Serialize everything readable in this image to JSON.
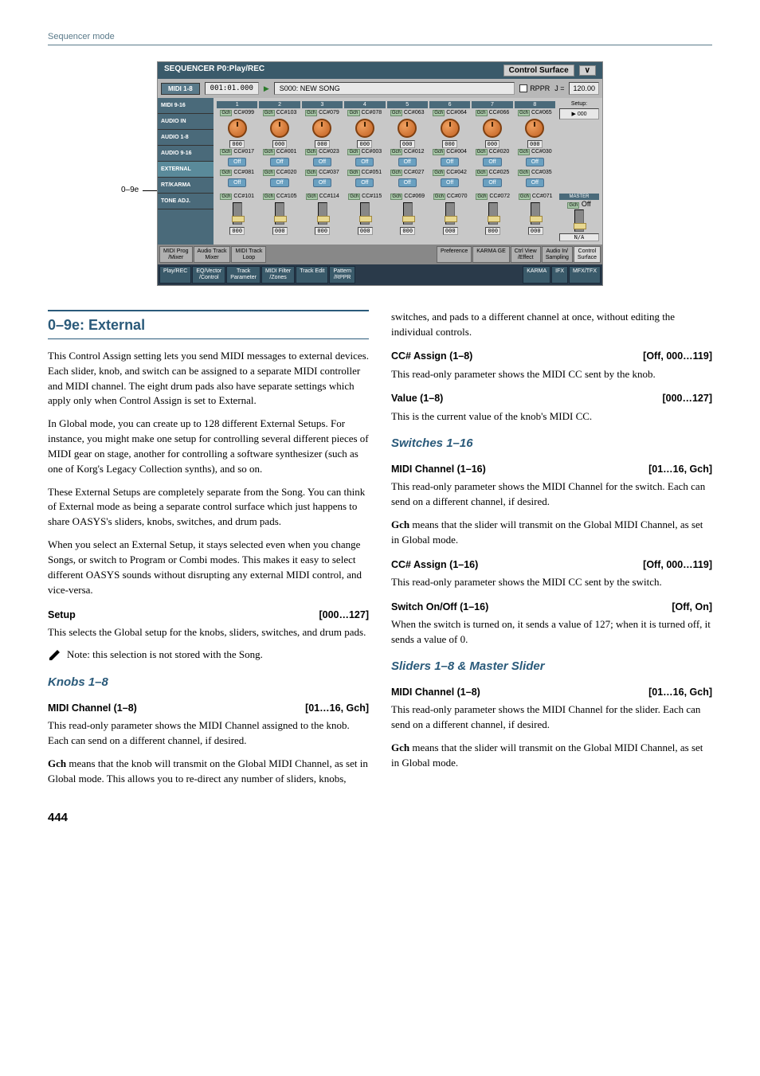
{
  "header": {
    "mode": "Sequencer mode"
  },
  "callout": "0–9e",
  "screenshot": {
    "title": "SEQUENCER P0:Play/REC",
    "surface_label": "Control Surface",
    "counter": "001:01.000",
    "play_icon": "▶",
    "song_name": "S000: NEW SONG",
    "rppr_label": "RPPR",
    "tempo_label": "J =",
    "tempo_value": "120.00",
    "sidebar": [
      "MIDI 1-8",
      "MIDI 9-16",
      "AUDIO IN",
      "AUDIO 1-8",
      "AUDIO 9-16",
      "EXTERNAL",
      "RT/KARMA",
      "TONE ADJ."
    ],
    "col_headers": [
      "1",
      "2",
      "3",
      "4",
      "5",
      "6",
      "7",
      "8"
    ],
    "knob_row": {
      "cc": [
        "CC#099",
        "CC#103",
        "CC#079",
        "CC#078",
        "CC#063",
        "CC#064",
        "CC#066",
        "CC#065"
      ],
      "vals": [
        "000",
        "000",
        "000",
        "000",
        "000",
        "000",
        "000",
        "000"
      ],
      "prefix": "Gch"
    },
    "sw_row1": {
      "cc": [
        "CC#017",
        "CC#001",
        "CC#023",
        "CC#003",
        "CC#012",
        "CC#004",
        "CC#020",
        "CC#030"
      ],
      "state": [
        "Off",
        "Off",
        "Off",
        "Off",
        "Off",
        "Off",
        "Off",
        "Off"
      ],
      "prefix": "Gch"
    },
    "sw_row2": {
      "cc": [
        "CC#081",
        "CC#020",
        "CC#037",
        "CC#051",
        "CC#027",
        "CC#042",
        "CC#025",
        "CC#035"
      ],
      "state": [
        "Off",
        "Off",
        "Off",
        "Off",
        "Off",
        "Off",
        "Off",
        "Off"
      ],
      "prefix": "Gch"
    },
    "slider_row": {
      "cc": [
        "CC#101",
        "CC#105",
        "CC#114",
        "CC#115",
        "CC#069",
        "CC#070",
        "CC#072",
        "CC#071"
      ],
      "vals": [
        "000",
        "000",
        "000",
        "000",
        "000",
        "000",
        "000",
        "000"
      ],
      "prefix": "Gch"
    },
    "setup": {
      "label": "Setup:",
      "value": "000"
    },
    "master": {
      "label": "MASTER",
      "cc": "Off",
      "val": "N/A",
      "prefix": "Gch"
    },
    "bottom_tabs": [
      "MIDI Prog\n/Mixer",
      "Audio Track\nMixer",
      "MIDI Track\nLoop",
      "",
      "Preference",
      "KARMA GE",
      "Ctrl View\n/Effect",
      "Audio In/\nSampling",
      "Control\nSurface"
    ],
    "footer_tabs": [
      "Play/REC",
      "EQ/Vector\n/Control",
      "Track\nParameter",
      "MIDI Filter\n/Zones",
      "Track Edit",
      "Pattern\n/RPPR",
      "",
      "KARMA",
      "IFX",
      "MFX/TFX"
    ]
  },
  "content": {
    "section_title": "0–9e: External",
    "p1": "This Control Assign setting lets you send MIDI messages to external devices. Each slider, knob, and switch can be assigned to a separate MIDI controller and MIDI channel. The eight drum pads also have separate settings which apply only when Control Assign is set to External.",
    "p2": "In Global mode, you can create up to 128 different External Setups. For instance, you might make one setup for controlling several different pieces of MIDI gear on stage, another for controlling a software synthesizer (such as one of Korg's Legacy Collection synths), and so on.",
    "p3": "These External Setups are completely separate from the Song. You can think of External mode as being a separate control surface which just happens to share OASYS's sliders, knobs, switches, and drum pads.",
    "p4": "When you select an External Setup, it stays selected even when you change Songs, or switch to Program or Combi modes. This makes it easy to select different OASYS sounds without disrupting any external MIDI control, and vice-versa.",
    "setup": {
      "name": "Setup",
      "range": "[000…127]"
    },
    "p5": "This selects the Global setup for the knobs, sliders, switches, and drum pads.",
    "note": "Note: this selection is not stored with the Song.",
    "knobs_heading": "Knobs 1–8",
    "knobs_midi_ch": {
      "name": "MIDI Channel (1–8)",
      "range": "[01…16, Gch]"
    },
    "p6": "This read-only parameter shows the MIDI Channel assigned to the knob. Each can send on a different channel, if desired.",
    "p7_a": "Gch",
    "p7_b": " means that the knob will transmit on the Global MIDI Channel, as set in Global mode. This allows you to re-direct any number of sliders, knobs, switches, and pads to a different channel at once, without editing the individual controls.",
    "knobs_cc": {
      "name": "CC# Assign (1–8)",
      "range": "[Off, 000…119]"
    },
    "p8": "This read-only parameter shows the MIDI CC sent by the knob.",
    "knobs_val": {
      "name": "Value (1–8)",
      "range": "[000…127]"
    },
    "p9": "This is the current value of the knob's MIDI CC.",
    "switches_heading": "Switches 1–16",
    "sw_midi_ch": {
      "name": "MIDI Channel (1–16)",
      "range": "[01…16, Gch]"
    },
    "p10": "This read-only parameter shows the MIDI Channel for the switch. Each can send on a different channel, if desired.",
    "p11_a": "Gch",
    "p11_b": " means that the slider will transmit on the Global MIDI Channel, as set in Global mode.",
    "sw_cc": {
      "name": "CC# Assign (1–16)",
      "range": "[Off, 000…119]"
    },
    "p12": "This read-only parameter shows the MIDI CC sent by the switch.",
    "sw_onoff": {
      "name": "Switch On/Off (1–16)",
      "range": "[Off, On]"
    },
    "p13": "When the switch is turned on, it sends a value of 127; when it is turned off, it sends a value of 0.",
    "sliders_heading": "Sliders 1–8 & Master Slider",
    "sl_midi_ch": {
      "name": "MIDI Channel (1–8)",
      "range": "[01…16, Gch]"
    },
    "p14": "This read-only parameter shows the MIDI Channel for the slider. Each can send on a different channel, if desired.",
    "p15_a": "Gch",
    "p15_b": " means that the slider will transmit on the Global MIDI Channel, as set in Global mode."
  },
  "page_number": "444",
  "colors": {
    "heading": "#2a5a7a",
    "sidebar": "#4a6a7a",
    "knob": "#c06020",
    "off_btn": "#6aa0c0"
  }
}
